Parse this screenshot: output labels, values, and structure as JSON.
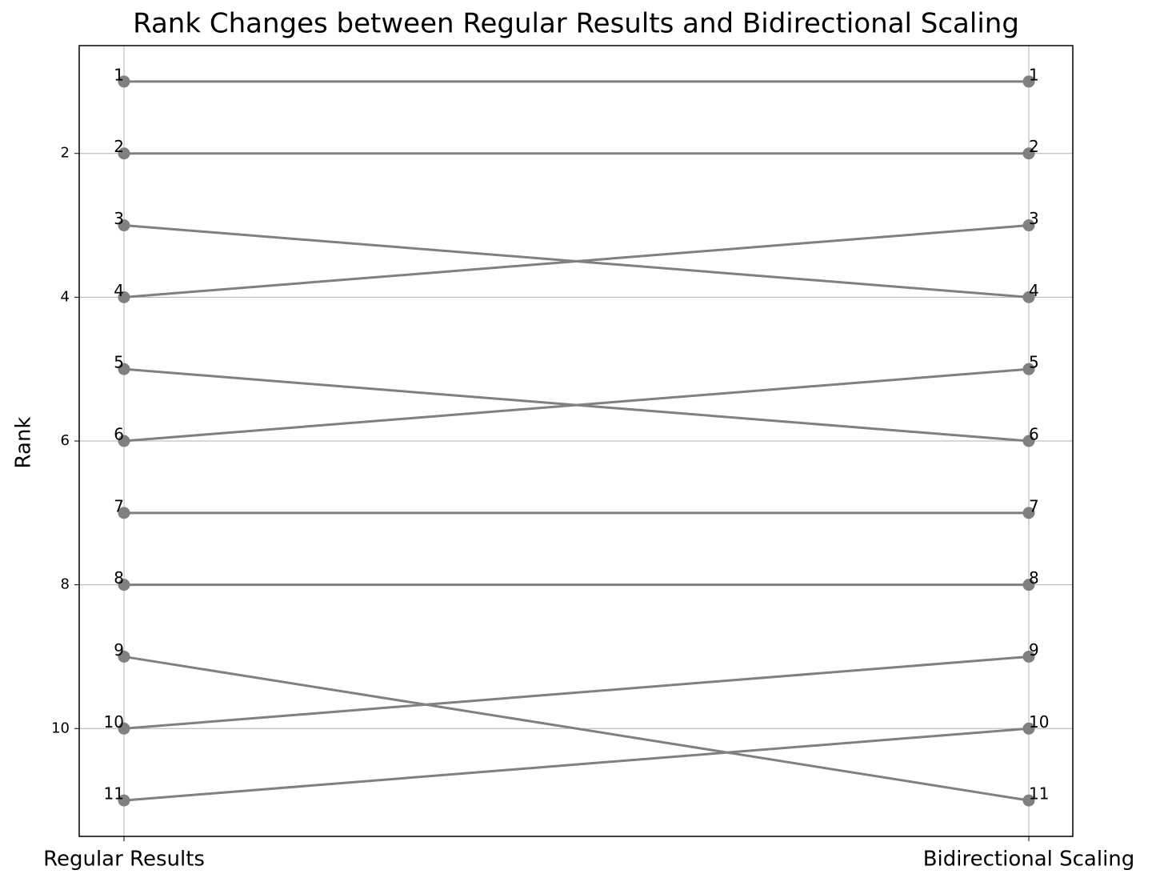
{
  "chart_data": {
    "type": "slope",
    "title": "Rank Changes between Regular Results and Bidirectional Scaling",
    "y_label": "Rank",
    "categories": [
      "Regular Results",
      "Bidirectional Scaling"
    ],
    "color": "#808080",
    "series": [
      {
        "values": [
          1,
          1
        ]
      },
      {
        "values": [
          2,
          2
        ]
      },
      {
        "values": [
          3,
          4
        ]
      },
      {
        "values": [
          4,
          3
        ]
      },
      {
        "values": [
          5,
          6
        ]
      },
      {
        "values": [
          6,
          5
        ]
      },
      {
        "values": [
          7,
          7
        ]
      },
      {
        "values": [
          8,
          8
        ]
      },
      {
        "values": [
          9,
          11
        ]
      },
      {
        "values": [
          10,
          9
        ]
      },
      {
        "values": [
          11,
          10
        ]
      }
    ],
    "ylim": [
      0.5,
      11.5
    ],
    "y_inverted": true,
    "yticks": [
      2,
      4,
      6,
      8,
      10
    ],
    "grid": true
  }
}
